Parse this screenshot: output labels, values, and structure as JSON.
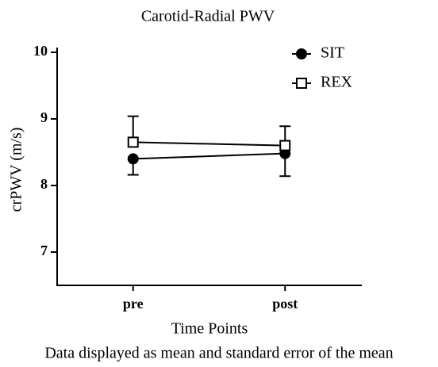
{
  "chart_data": {
    "type": "line",
    "title": "Carotid-Radial PWV",
    "y_label": "crPWV (m/s)",
    "x_label": "Time Points",
    "annotation": "Data displayed as mean and standard error of the mean",
    "categories": [
      "pre",
      "post"
    ],
    "series": [
      {
        "name": "SIT",
        "color": "#000000",
        "marker": "circle",
        "filled": true,
        "error_side": "lower",
        "values": [
          8.4,
          8.48
        ],
        "errors": [
          0.24,
          0.34
        ]
      },
      {
        "name": "REX",
        "color": "#000000",
        "marker": "square",
        "filled": false,
        "error_side": "upper",
        "values": [
          8.65,
          8.6
        ],
        "errors": [
          0.39,
          0.29
        ]
      }
    ],
    "ylim": [
      6.5,
      10
    ],
    "yticks": [
      7,
      8,
      9,
      10
    ],
    "legend": "top-right"
  }
}
